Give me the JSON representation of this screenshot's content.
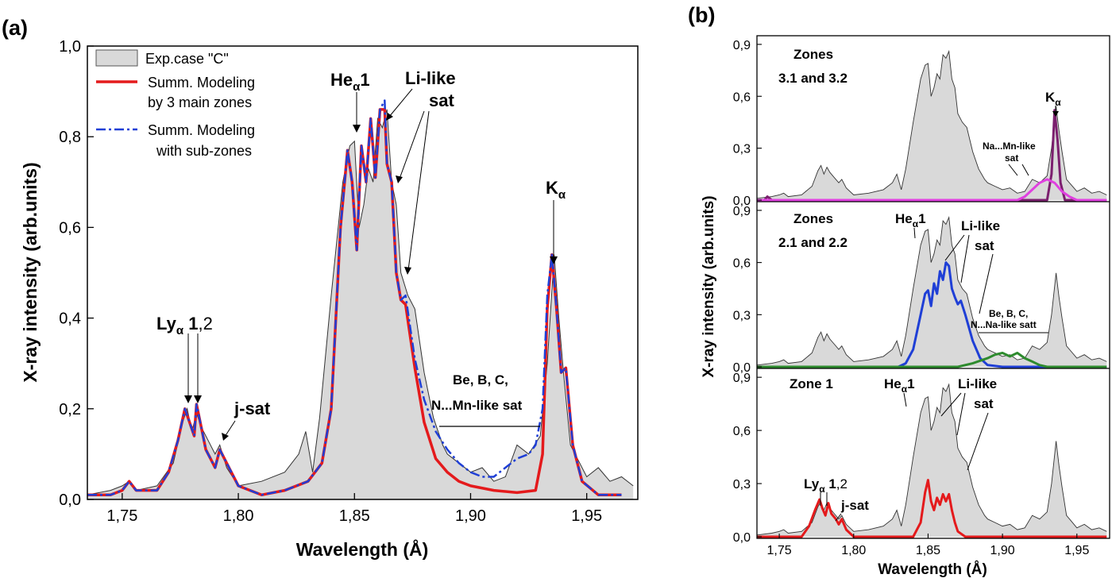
{
  "figure": {
    "panel_a_label": "(a)",
    "panel_b_label": "(b)"
  },
  "chart_data": [
    {
      "type": "line",
      "panel": "(a)",
      "xlabel": "Wavelength (Å)",
      "ylabel": "X-ray intensity (arb.units)",
      "xlim": [
        1.735,
        1.972
      ],
      "ylim": [
        0,
        1.0
      ],
      "xticks": [
        "1,75",
        "1,80",
        "1,85",
        "1,90",
        "1,95"
      ],
      "yticks": [
        "0,0",
        "0,2",
        "0,4",
        "0,6",
        "0,8",
        "1,0"
      ],
      "legend": {
        "placement": "top-left",
        "entries": [
          {
            "label": "Exp.case \"C\"",
            "style": "area",
            "color": "#d9d9d9"
          },
          {
            "label": "Summ. Modeling",
            "label2": "by 3 main zones",
            "style": "solid",
            "color": "#e41a1c"
          },
          {
            "label": "Summ. Modeling",
            "label2": "with sub-zones",
            "style": "dashdot",
            "color": "#1f3fd6"
          }
        ]
      },
      "annotations": {
        "ly": {
          "main": "Ly",
          "sub": "α",
          "tail_bold": " 1",
          "tail": ",2"
        },
        "jsat": "j-sat",
        "he": {
          "main": "He",
          "sub": "α",
          "tail": "1"
        },
        "li1": "Li-like",
        "li2": "sat",
        "be1": "Be, B, C,",
        "be2": "N...Mn-like sat",
        "ka": {
          "main": "K",
          "sub": "α"
        }
      },
      "series": [
        {
          "name": "Exp.case \"C\"",
          "color": "#d9d9d9",
          "x": [
            1.735,
            1.745,
            1.75,
            1.753,
            1.756,
            1.765,
            1.772,
            1.776,
            1.778,
            1.78,
            1.782,
            1.784,
            1.787,
            1.79,
            1.792,
            1.795,
            1.8,
            1.81,
            1.82,
            1.826,
            1.829,
            1.832,
            1.835,
            1.84,
            1.845,
            1.848,
            1.85,
            1.852,
            1.854,
            1.856,
            1.858,
            1.86,
            1.862,
            1.864,
            1.866,
            1.868,
            1.87,
            1.873,
            1.876,
            1.88,
            1.884,
            1.888,
            1.89,
            1.895,
            1.9,
            1.905,
            1.91,
            1.915,
            1.92,
            1.925,
            1.93,
            1.933,
            1.936,
            1.938,
            1.94,
            1.943,
            1.947,
            1.95,
            1.955,
            1.96,
            1.965,
            1.97
          ],
          "values": [
            0.01,
            0.02,
            0.03,
            0.04,
            0.02,
            0.03,
            0.08,
            0.17,
            0.2,
            0.15,
            0.19,
            0.16,
            0.13,
            0.1,
            0.12,
            0.07,
            0.03,
            0.04,
            0.06,
            0.1,
            0.15,
            0.06,
            0.18,
            0.45,
            0.7,
            0.78,
            0.79,
            0.6,
            0.65,
            0.73,
            0.7,
            0.84,
            0.82,
            0.86,
            0.7,
            0.65,
            0.5,
            0.45,
            0.42,
            0.28,
            0.18,
            0.12,
            0.1,
            0.08,
            0.06,
            0.07,
            0.04,
            0.05,
            0.12,
            0.1,
            0.14,
            0.3,
            0.54,
            0.4,
            0.28,
            0.12,
            0.08,
            0.05,
            0.07,
            0.04,
            0.05,
            0.03
          ]
        },
        {
          "name": "Summ. Modeling by 3 main zones",
          "color": "#e41a1c",
          "x": [
            1.735,
            1.745,
            1.75,
            1.753,
            1.756,
            1.765,
            1.77,
            1.774,
            1.777,
            1.779,
            1.781,
            1.782,
            1.784,
            1.786,
            1.788,
            1.79,
            1.792,
            1.795,
            1.8,
            1.81,
            1.82,
            1.83,
            1.836,
            1.84,
            1.844,
            1.847,
            1.849,
            1.851,
            1.853,
            1.855,
            1.857,
            1.859,
            1.861,
            1.863,
            1.864,
            1.866,
            1.868,
            1.87,
            1.872,
            1.874,
            1.876,
            1.88,
            1.885,
            1.89,
            1.895,
            1.9,
            1.91,
            1.92,
            1.928,
            1.931,
            1.933,
            1.935,
            1.937,
            1.939,
            1.941,
            1.944,
            1.948,
            1.955,
            1.965
          ],
          "values": [
            0.01,
            0.01,
            0.02,
            0.04,
            0.02,
            0.02,
            0.06,
            0.13,
            0.2,
            0.17,
            0.14,
            0.21,
            0.16,
            0.11,
            0.09,
            0.07,
            0.11,
            0.08,
            0.03,
            0.01,
            0.02,
            0.04,
            0.08,
            0.2,
            0.6,
            0.77,
            0.7,
            0.55,
            0.78,
            0.7,
            0.84,
            0.71,
            0.86,
            0.86,
            0.74,
            0.7,
            0.5,
            0.44,
            0.43,
            0.36,
            0.29,
            0.17,
            0.09,
            0.06,
            0.04,
            0.03,
            0.02,
            0.015,
            0.02,
            0.1,
            0.42,
            0.54,
            0.42,
            0.28,
            0.29,
            0.12,
            0.04,
            0.01,
            0.01
          ]
        },
        {
          "name": "Summ. Modeling with sub-zones",
          "color": "#1f3fd6",
          "x": [
            1.735,
            1.745,
            1.75,
            1.753,
            1.756,
            1.765,
            1.77,
            1.774,
            1.777,
            1.779,
            1.781,
            1.782,
            1.784,
            1.786,
            1.788,
            1.79,
            1.792,
            1.795,
            1.8,
            1.81,
            1.82,
            1.83,
            1.836,
            1.84,
            1.844,
            1.847,
            1.849,
            1.851,
            1.853,
            1.855,
            1.857,
            1.859,
            1.861,
            1.863,
            1.864,
            1.866,
            1.868,
            1.87,
            1.872,
            1.874,
            1.876,
            1.88,
            1.885,
            1.89,
            1.895,
            1.9,
            1.905,
            1.91,
            1.915,
            1.92,
            1.925,
            1.928,
            1.931,
            1.933,
            1.935,
            1.937,
            1.939,
            1.941,
            1.944,
            1.948,
            1.955,
            1.965
          ],
          "values": [
            0.01,
            0.01,
            0.02,
            0.04,
            0.02,
            0.02,
            0.06,
            0.13,
            0.2,
            0.17,
            0.14,
            0.21,
            0.16,
            0.11,
            0.09,
            0.07,
            0.11,
            0.08,
            0.03,
            0.01,
            0.02,
            0.04,
            0.08,
            0.2,
            0.6,
            0.77,
            0.7,
            0.55,
            0.78,
            0.7,
            0.84,
            0.71,
            0.86,
            0.88,
            0.74,
            0.7,
            0.5,
            0.44,
            0.45,
            0.38,
            0.31,
            0.22,
            0.15,
            0.11,
            0.08,
            0.06,
            0.05,
            0.05,
            0.07,
            0.09,
            0.1,
            0.12,
            0.2,
            0.45,
            0.54,
            0.42,
            0.28,
            0.29,
            0.12,
            0.04,
            0.01,
            0.01
          ]
        }
      ]
    },
    {
      "type": "line",
      "panel": "(b)",
      "xlabel": "Wavelength (Å)",
      "ylabel": "X-ray intensity (arb.units)",
      "xlim": [
        1.735,
        1.972
      ],
      "ylim": [
        0,
        0.95
      ],
      "xticks": [
        "1,75",
        "1,80",
        "1,85",
        "1,90",
        "1,95"
      ],
      "yticks": [
        "0,0",
        "0,3",
        "0,6",
        "0,9"
      ],
      "subplots": [
        {
          "title1": "Zones",
          "title2": "3.1 and 3.2",
          "annotations": {
            "ka": {
              "main": "K",
              "sub": "α"
            },
            "na1": "Na...Mn-like",
            "na2": "sat"
          },
          "series": [
            {
              "name": "Kα zone model",
              "color": "#7b1f6e",
              "x": [
                1.735,
                1.74,
                1.742,
                1.745,
                1.75,
                1.92,
                1.93,
                1.933,
                1.935,
                1.937,
                1.939,
                1.942,
                1.95,
                1.97
              ],
              "values": [
                0.0,
                0.0,
                0.02,
                0.0,
                0.0,
                0.0,
                0.0,
                0.15,
                0.52,
                0.35,
                0.1,
                0.0,
                0.0,
                0.0
              ]
            },
            {
              "name": "Na...Mn-like sat model",
              "color": "#e040e0",
              "x": [
                1.735,
                1.91,
                1.915,
                1.92,
                1.925,
                1.93,
                1.935,
                1.94,
                1.945,
                1.95,
                1.97
              ],
              "values": [
                0.0,
                0.0,
                0.02,
                0.06,
                0.1,
                0.12,
                0.1,
                0.05,
                0.02,
                0.0,
                0.0
              ]
            }
          ]
        },
        {
          "title1": "Zones",
          "title2": "2.1 and 2.2",
          "annotations": {
            "he": {
              "main": "He",
              "sub": "α",
              "tail": "1"
            },
            "li1": "Li-like",
            "li2": "sat",
            "be1": "Be, B, C,",
            "be2": "N...Na-like satt"
          },
          "series": [
            {
              "name": "Heα and Li-like sat model",
              "color": "#1f3fd6",
              "x": [
                1.735,
                1.83,
                1.835,
                1.84,
                1.845,
                1.848,
                1.85,
                1.852,
                1.854,
                1.856,
                1.858,
                1.86,
                1.862,
                1.864,
                1.866,
                1.868,
                1.87,
                1.872,
                1.875,
                1.88,
                1.885,
                1.89,
                1.9,
                1.97
              ],
              "values": [
                0.0,
                0.0,
                0.02,
                0.1,
                0.3,
                0.42,
                0.44,
                0.35,
                0.48,
                0.42,
                0.55,
                0.5,
                0.6,
                0.58,
                0.45,
                0.4,
                0.36,
                0.38,
                0.3,
                0.15,
                0.05,
                0.01,
                0.0,
                0.0
              ]
            },
            {
              "name": "Be...Na-like satt model",
              "color": "#2e8b2e",
              "x": [
                1.735,
                1.87,
                1.88,
                1.89,
                1.895,
                1.9,
                1.905,
                1.91,
                1.915,
                1.92,
                1.925,
                1.93,
                1.97
              ],
              "values": [
                0.0,
                0.0,
                0.02,
                0.05,
                0.07,
                0.08,
                0.06,
                0.08,
                0.05,
                0.03,
                0.01,
                0.0,
                0.0
              ]
            }
          ]
        },
        {
          "title1": "Zone 1",
          "title2": "",
          "annotations": {
            "ly": {
              "main": "Ly",
              "sub": "α",
              "tail_bold": " 1",
              "tail": ",2"
            },
            "jsat": "j-sat",
            "he": {
              "main": "He",
              "sub": "α",
              "tail": "1"
            },
            "li1": "Li-like",
            "li2": "sat"
          },
          "series": [
            {
              "name": "Zone 1 model",
              "color": "#e41a1c",
              "x": [
                1.735,
                1.765,
                1.77,
                1.774,
                1.777,
                1.779,
                1.781,
                1.783,
                1.785,
                1.788,
                1.79,
                1.792,
                1.795,
                1.8,
                1.84,
                1.845,
                1.848,
                1.85,
                1.852,
                1.854,
                1.856,
                1.858,
                1.86,
                1.862,
                1.864,
                1.866,
                1.868,
                1.87,
                1.875,
                1.88,
                1.97
              ],
              "values": [
                0.0,
                0.0,
                0.06,
                0.15,
                0.21,
                0.16,
                0.12,
                0.19,
                0.13,
                0.1,
                0.07,
                0.1,
                0.04,
                0.0,
                0.0,
                0.08,
                0.25,
                0.32,
                0.2,
                0.15,
                0.22,
                0.18,
                0.24,
                0.2,
                0.24,
                0.15,
                0.08,
                0.03,
                0.0,
                0.0,
                0.0
              ]
            }
          ]
        }
      ]
    }
  ]
}
